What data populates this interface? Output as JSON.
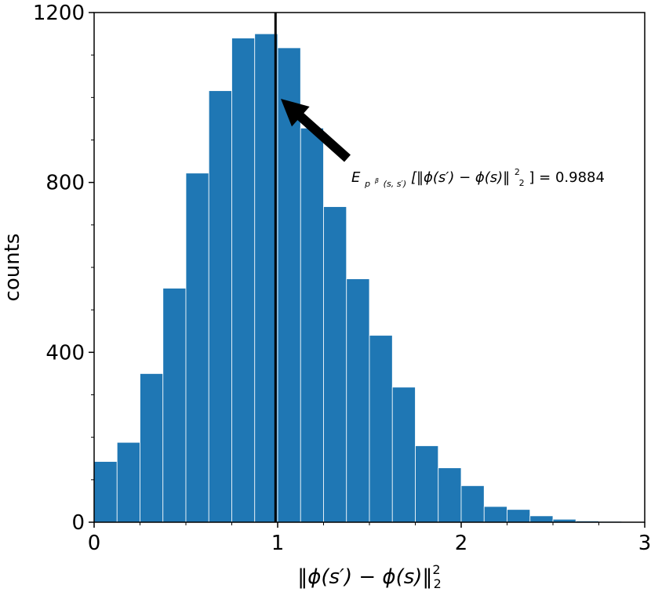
{
  "chart_data": {
    "type": "bar",
    "subtype": "histogram",
    "xlabel": "‖ϕ(s′) − ϕ(s)‖²₂",
    "ylabel": "counts",
    "xlim": [
      0,
      3
    ],
    "ylim": [
      0,
      1200
    ],
    "xticks": [
      "0",
      "1",
      "2",
      "3"
    ],
    "yticks": [
      "0",
      "400",
      "800",
      "1200"
    ],
    "bin_edges": [
      0.0,
      0.125,
      0.25,
      0.375,
      0.5,
      0.625,
      0.75,
      0.875,
      1.0,
      1.125,
      1.25,
      1.375,
      1.5,
      1.625,
      1.75,
      1.875,
      2.0,
      2.125,
      2.25,
      2.375,
      2.5,
      2.625,
      2.75,
      2.875,
      3.0
    ],
    "values": [
      143,
      188,
      350,
      551,
      822,
      1016,
      1140,
      1150,
      1117,
      928,
      743,
      573,
      440,
      318,
      180,
      128,
      86,
      37,
      30,
      15,
      7,
      3,
      2,
      1
    ],
    "color": "#1f77b4",
    "vline": {
      "x": 0.9884,
      "color": "#000000"
    },
    "annotation": {
      "E": "E",
      "sub_p": "p",
      "sub_beta": "β",
      "sub_args": "(s, s′)",
      "body_start": "[‖ϕ(s′) − ϕ(s)‖",
      "sup": "2",
      "sub": "2",
      "body_end": "] = 0.9884",
      "color": "#000000"
    },
    "grid": false,
    "legend": "none"
  }
}
